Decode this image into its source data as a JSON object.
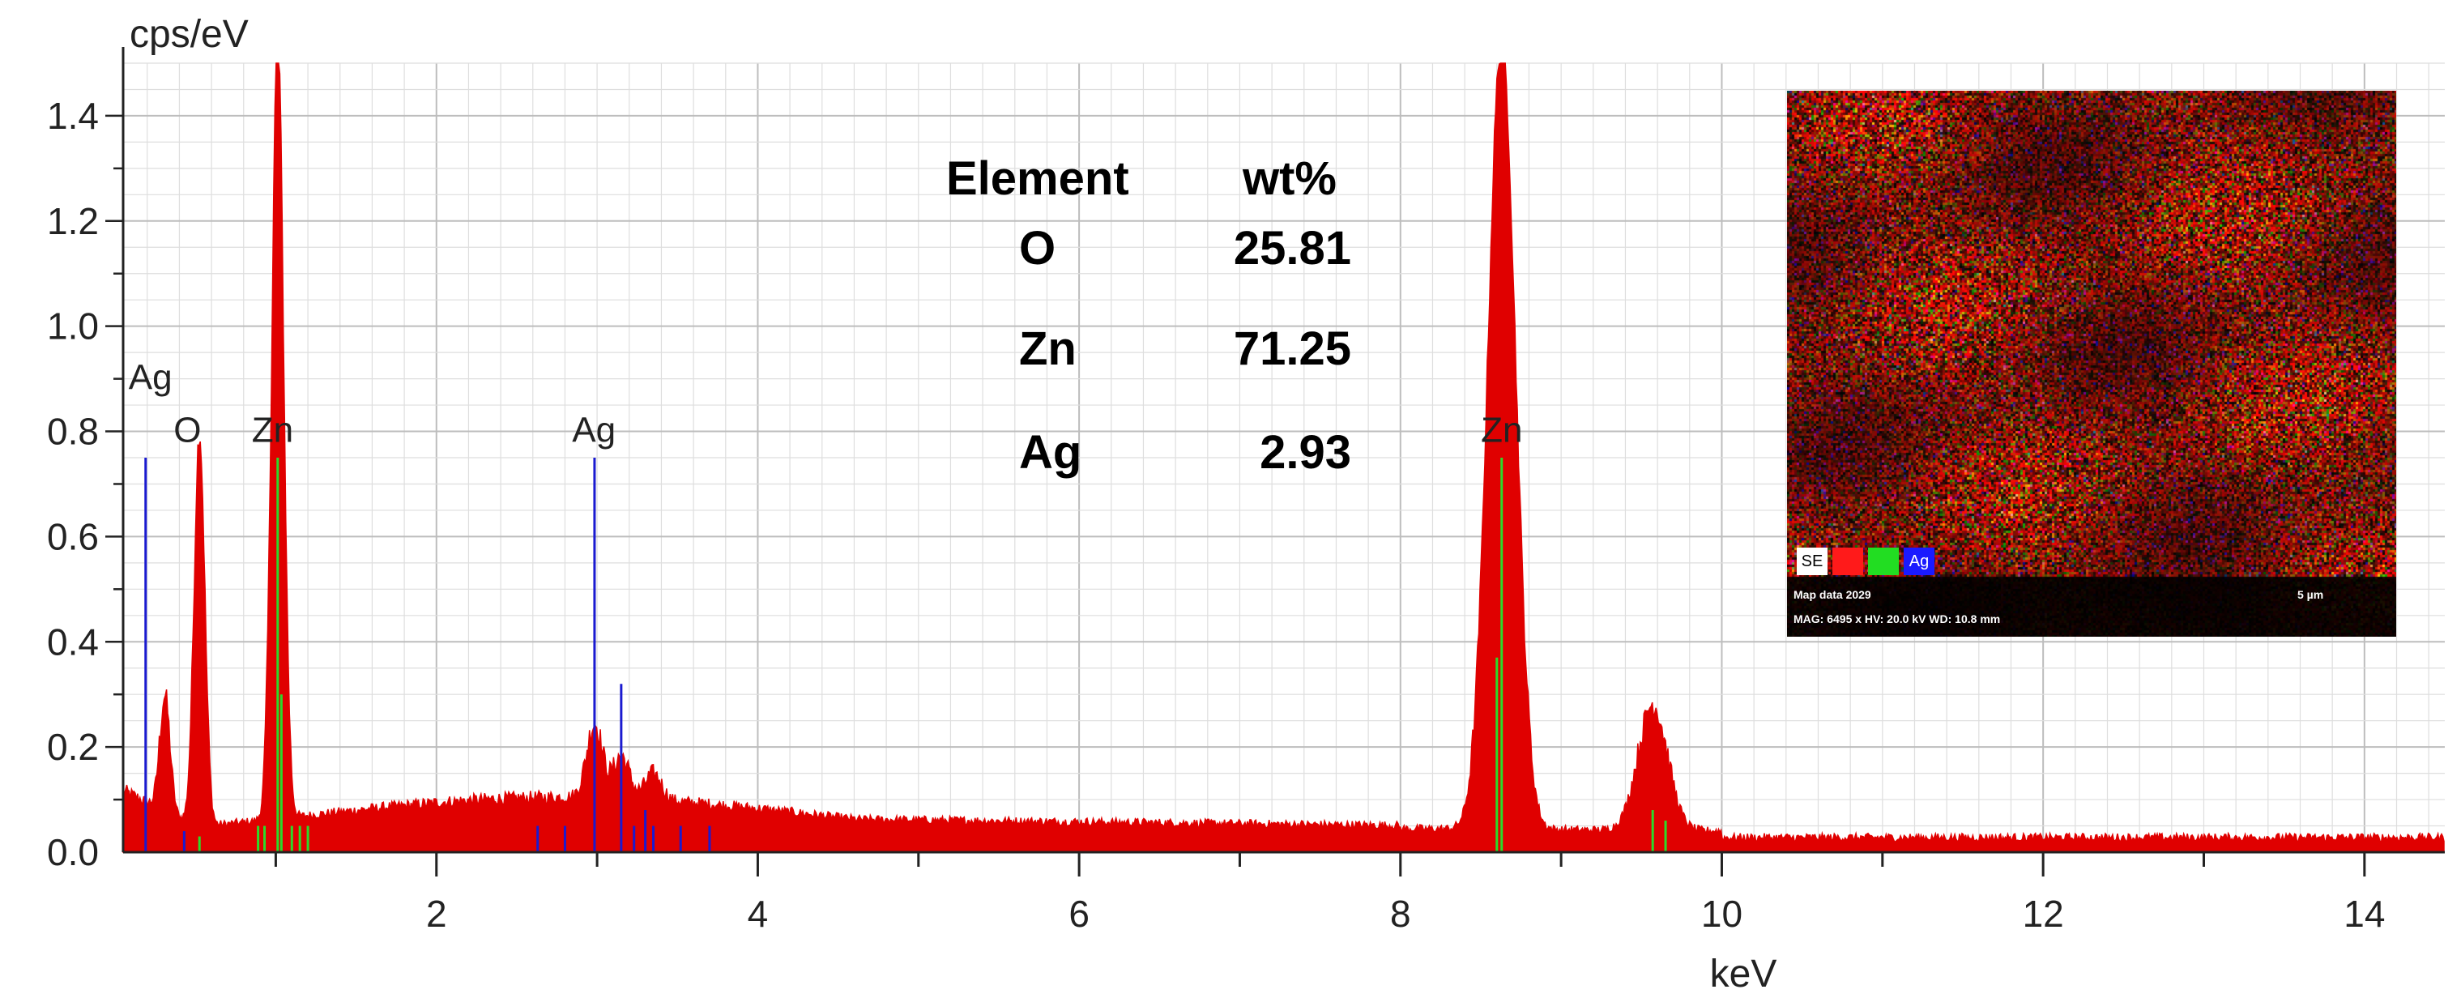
{
  "chart_data": {
    "type": "bar",
    "title": "",
    "xlabel": "keV",
    "ylabel": "cps/eV",
    "xlim": [
      0.05,
      14.5
    ],
    "ylim": [
      0,
      1.5
    ],
    "x_ticks": [
      2,
      4,
      6,
      8,
      10,
      12,
      14
    ],
    "y_ticks": [
      0.0,
      0.2,
      0.4,
      0.6,
      0.8,
      1.0,
      1.2,
      1.4
    ],
    "grid": true,
    "spectrum_color": "#e00000",
    "peaks": [
      {
        "element": "Ag",
        "energy": 0.31,
        "height": 0.22
      },
      {
        "element": "O",
        "energy": 0.525,
        "height": 0.75
      },
      {
        "element": "Zn",
        "energy": 1.012,
        "height": 1.5
      },
      {
        "element": "Ag",
        "energy": 2.984,
        "height": 0.14
      },
      {
        "element": "Ag",
        "energy": 3.15,
        "height": 0.08
      },
      {
        "element": "Ag",
        "energy": 3.35,
        "height": 0.05
      },
      {
        "element": "Zn",
        "energy": 8.63,
        "height": 1.5
      },
      {
        "element": "Zn",
        "energy": 9.57,
        "height": 0.24
      }
    ],
    "peak_labels": [
      {
        "text": "Ag",
        "energy": 0.22,
        "level": 0.88
      },
      {
        "text": "O",
        "energy": 0.45,
        "level": 0.78
      },
      {
        "text": "Zn",
        "energy": 0.98,
        "level": 0.78
      },
      {
        "text": "Ag",
        "energy": 2.98,
        "level": 0.78
      },
      {
        "text": "Zn",
        "energy": 8.63,
        "level": 0.78
      }
    ],
    "markers_blue": [
      {
        "energy": 0.19,
        "level": 0.75
      },
      {
        "energy": 2.984,
        "level": 0.75
      },
      {
        "energy": 3.15,
        "level": 0.32
      },
      {
        "energy": 0.43,
        "level": 0.04
      },
      {
        "energy": 2.63,
        "level": 0.05
      },
      {
        "energy": 2.8,
        "level": 0.05
      },
      {
        "energy": 3.23,
        "level": 0.05
      },
      {
        "energy": 3.35,
        "level": 0.05
      },
      {
        "energy": 3.52,
        "level": 0.05
      },
      {
        "energy": 3.7,
        "level": 0.05
      },
      {
        "energy": 3.3,
        "level": 0.08
      }
    ],
    "markers_green": [
      {
        "energy": 0.525,
        "level": 0.03
      },
      {
        "energy": 0.89,
        "level": 0.05
      },
      {
        "energy": 0.93,
        "level": 0.05
      },
      {
        "energy": 1.012,
        "level": 0.75
      },
      {
        "energy": 1.035,
        "level": 0.3
      },
      {
        "energy": 1.1,
        "level": 0.05
      },
      {
        "energy": 1.15,
        "level": 0.05
      },
      {
        "energy": 1.2,
        "level": 0.05
      },
      {
        "energy": 8.63,
        "level": 0.75
      },
      {
        "energy": 8.6,
        "level": 0.37
      },
      {
        "energy": 9.57,
        "level": 0.08
      },
      {
        "energy": 9.65,
        "level": 0.06
      }
    ]
  },
  "composition": {
    "headers": [
      "Element",
      "wt%"
    ],
    "rows": [
      {
        "element": "O",
        "wt": "25.81"
      },
      {
        "element": "Zn",
        "wt": "71.25"
      },
      {
        "element": "Ag",
        "wt": "2.93"
      }
    ]
  },
  "inset": {
    "legend": [
      {
        "label": "SE",
        "color": "#ffffff",
        "text_color": "#000000"
      },
      {
        "label": "",
        "color": "#ff1a1a",
        "text_color": "#ffffff"
      },
      {
        "label": "",
        "color": "#22dd22",
        "text_color": "#ffffff"
      },
      {
        "label": "Ag",
        "color": "#1a1aff",
        "text_color": "#ffffff"
      }
    ],
    "caption": "Map data 2029",
    "scale": "5 µm",
    "params": "MAG: 6495 x  HV: 20.0 kV  WD: 10.8 mm"
  }
}
